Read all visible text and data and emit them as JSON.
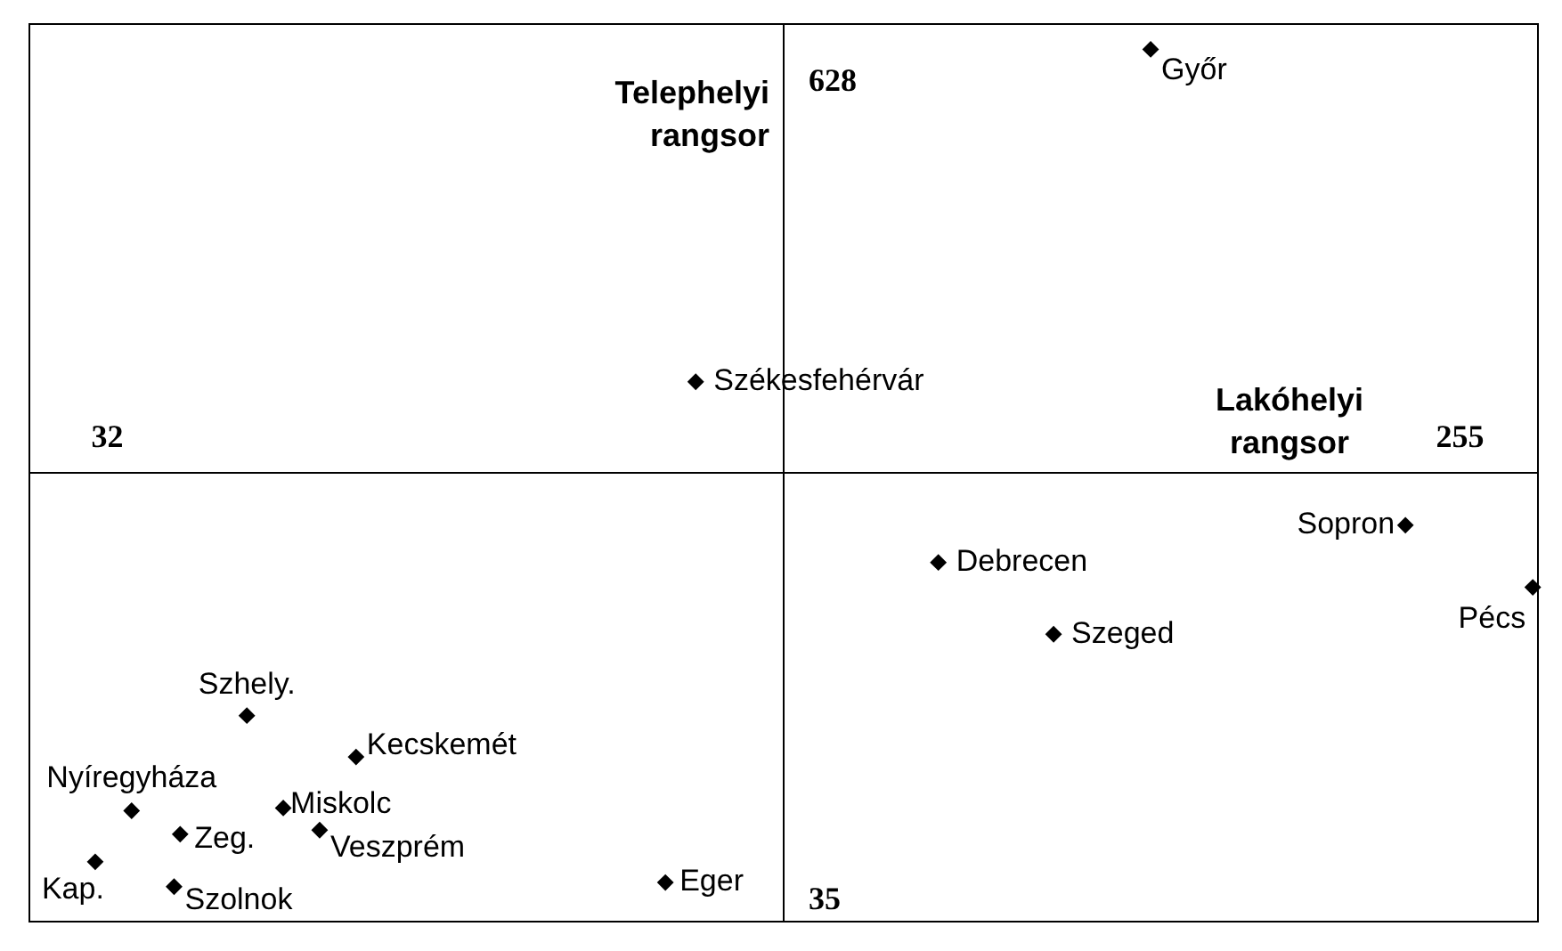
{
  "chart_data": {
    "type": "scatter",
    "xlabel": "Lakóhelyi rangsor",
    "ylabel": "Telephelyi rangsor",
    "xlim": [
      19,
      268
    ],
    "ylim": [
      19,
      671
    ],
    "xticks": [
      32,
      255
    ],
    "yticks": [
      35,
      628
    ],
    "grid": false,
    "legend": false,
    "marker": "diamond",
    "series": [
      {
        "color": "#000000",
        "x": [
          204,
          129,
          169,
          246,
          267,
          188,
          55,
          73,
          36,
          61,
          44,
          67,
          30,
          43,
          124
        ],
        "values": [
          652,
          411,
          280,
          307,
          262,
          228,
          169,
          139,
          100,
          102,
          83,
          86,
          63,
          45,
          48
        ]
      }
    ],
    "annotations": [
      {
        "text": "Győr",
        "x": 204,
        "y": 652
      },
      {
        "text": "Székesfehérvár",
        "x": 129,
        "y": 411
      },
      {
        "text": "Debrecen",
        "x": 169,
        "y": 280
      },
      {
        "text": "Sopron",
        "x": 246,
        "y": 307
      },
      {
        "text": "Pécs",
        "x": 267,
        "y": 262
      },
      {
        "text": "Szeged",
        "x": 188,
        "y": 228
      },
      {
        "text": "Szhely.",
        "x": 55,
        "y": 169
      },
      {
        "text": "Kecskemét",
        "x": 73,
        "y": 139
      },
      {
        "text": "Nyíregyháza",
        "x": 36,
        "y": 100
      },
      {
        "text": "Miskolc",
        "x": 61,
        "y": 102
      },
      {
        "text": "Zeg.",
        "x": 44,
        "y": 83
      },
      {
        "text": "Veszprém",
        "x": 67,
        "y": 86
      },
      {
        "text": "Kap.",
        "x": 30,
        "y": 63
      },
      {
        "text": "Szolnok",
        "x": 43,
        "y": 45
      },
      {
        "text": "Eger",
        "x": 124,
        "y": 48
      }
    ]
  }
}
